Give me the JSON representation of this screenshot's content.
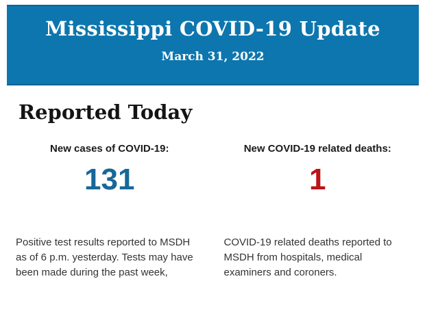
{
  "banner": {
    "title": "Mississippi COVID-19 Update",
    "date": "March 31, 2022",
    "background_color": "#0d76ae",
    "text_color": "#ffffff"
  },
  "main": {
    "heading": "Reported Today",
    "stats": [
      {
        "label": "New cases of COVID-19:",
        "value": "131",
        "value_color": "#17689a",
        "description": "Positive test results reported to MSDH as of 6 p.m. yesterday. Tests may have been made during the past week,"
      },
      {
        "label": "New COVID-19 related deaths:",
        "value": "1",
        "value_color": "#bb1318",
        "description": "COVID-19 related deaths reported to MSDH from hospitals, medical examiners and coroners."
      }
    ]
  }
}
